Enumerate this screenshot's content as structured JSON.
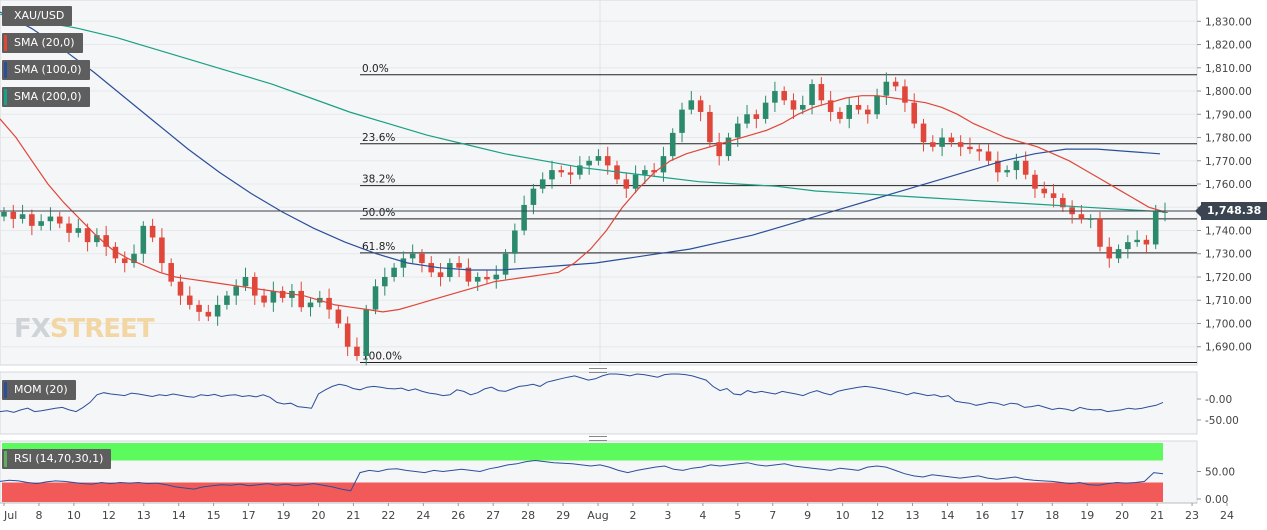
{
  "symbol": "XAU/USD",
  "legend": {
    "main": [
      {
        "label": "XAU/USD",
        "color": "#5e5e5e"
      },
      {
        "label": "SMA (20,0)",
        "color": "#e0463a"
      },
      {
        "label": "SMA (100,0)",
        "color": "#2a4f9a"
      },
      {
        "label": "SMA (200,0)",
        "color": "#1aa085"
      }
    ],
    "mom": {
      "label": "MOM (20)",
      "color": "#2a4f9a"
    },
    "rsi": {
      "label": "RSI (14,70,30,1)",
      "color": "#5eb05e"
    }
  },
  "watermark": {
    "part1": "FX",
    "part2": "STREET"
  },
  "current_price": "1,748.38",
  "colors": {
    "up": "#2c8a6c",
    "down": "#e0463a",
    "sma20": "#e0463a",
    "sma100": "#2a4f9a",
    "sma200": "#1aa085",
    "mom": "#2a4f9a",
    "rsi": "#2a4f9a",
    "overbought": "#5dfa5d",
    "oversold": "#f25a5a"
  },
  "chart_data": {
    "type": "candlestick",
    "y_axis_labels": [
      "1,830.00",
      "1,820.00",
      "1,810.00",
      "1,800.00",
      "1,790.00",
      "1,780.00",
      "1,770.00",
      "1,760.00",
      "1,750.00",
      "1,740.00",
      "1,730.00",
      "1,720.00",
      "1,710.00",
      "1,700.00",
      "1,690.00"
    ],
    "ylim": [
      1683,
      1834
    ],
    "x_axis_labels": [
      "Jul",
      "8",
      "10",
      "12",
      "13",
      "14",
      "15",
      "17",
      "19",
      "20",
      "21",
      "22",
      "24",
      "26",
      "27",
      "28",
      "29",
      "Aug",
      "2",
      "3",
      "4",
      "5",
      "7",
      "9",
      "10",
      "12",
      "13",
      "14",
      "16",
      "17",
      "18",
      "19",
      "20",
      "21",
      "23",
      "24"
    ],
    "fibonacci": [
      {
        "label": "0.0%",
        "price": 1807
      },
      {
        "label": "23.6%",
        "price": 1777.3
      },
      {
        "label": "38.2%",
        "price": 1759.3
      },
      {
        "label": "50.0%",
        "price": 1745
      },
      {
        "label": "61.8%",
        "price": 1730.4
      },
      {
        "label": "100.0%",
        "price": 1683.2
      }
    ],
    "close_series": [
      1748,
      1745,
      1747,
      1742,
      1744,
      1746,
      1743,
      1739,
      1741,
      1735,
      1738,
      1733,
      1728,
      1726,
      1730,
      1742,
      1737,
      1726,
      1718,
      1712,
      1708,
      1705,
      1703,
      1708,
      1712,
      1716,
      1720,
      1712,
      1709,
      1714,
      1711,
      1714,
      1707,
      1709,
      1711,
      1706,
      1700,
      1690,
      1686,
      1706,
      1716,
      1720,
      1724,
      1728,
      1730,
      1726,
      1722,
      1720,
      1726,
      1724,
      1718,
      1720,
      1719,
      1721,
      1730,
      1740,
      1751,
      1758,
      1762,
      1766,
      1765,
      1764,
      1768,
      1770,
      1772,
      1768,
      1762,
      1758,
      1764,
      1766,
      1765,
      1772,
      1782,
      1792,
      1796,
      1791,
      1778,
      1772,
      1780,
      1786,
      1790,
      1788,
      1795,
      1800,
      1796,
      1792,
      1794,
      1803,
      1796,
      1791,
      1788,
      1794,
      1792,
      1790,
      1798,
      1804,
      1802,
      1795,
      1786,
      1778,
      1776,
      1780,
      1778,
      1776,
      1775,
      1774,
      1770,
      1765,
      1766,
      1770,
      1764,
      1758,
      1756,
      1754,
      1750,
      1747,
      1745,
      1745,
      1733,
      1728,
      1732,
      1735,
      1736,
      1734,
      1748,
      1748
    ],
    "sma20": [
      1788,
      1780,
      1770,
      1760,
      1752,
      1745,
      1738,
      1732,
      1728,
      1725,
      1722,
      1720,
      1719,
      1718,
      1717,
      1716,
      1715,
      1714,
      1713,
      1712,
      1710,
      1708,
      1707,
      1706,
      1705,
      1706,
      1708,
      1710,
      1712,
      1714,
      1716,
      1718,
      1719,
      1720,
      1721,
      1722,
      1726,
      1732,
      1740,
      1750,
      1758,
      1765,
      1770,
      1773,
      1775,
      1777,
      1779,
      1781,
      1783,
      1786,
      1790,
      1793,
      1795,
      1797,
      1798,
      1798,
      1797,
      1796,
      1795,
      1793,
      1790,
      1786,
      1783,
      1780,
      1778,
      1776,
      1773,
      1770,
      1766,
      1762,
      1758,
      1754,
      1750,
      1748
    ],
    "sma100": [
      1834,
      1827,
      1818,
      1808,
      1797,
      1786,
      1775,
      1765,
      1756,
      1748,
      1741,
      1735,
      1730,
      1726,
      1724,
      1723,
      1723,
      1724,
      1725,
      1726,
      1728,
      1730,
      1732,
      1735,
      1738,
      1742,
      1746,
      1750,
      1754,
      1758,
      1762,
      1766,
      1770,
      1773,
      1775,
      1775,
      1774,
      1773
    ],
    "sma200": [
      1833,
      1830,
      1827,
      1823,
      1818,
      1813,
      1808,
      1803,
      1797,
      1791,
      1786,
      1781,
      1777,
      1773,
      1770,
      1767,
      1765,
      1763,
      1761,
      1760,
      1759,
      1757,
      1756,
      1755,
      1754,
      1753,
      1752,
      1751,
      1750,
      1749,
      1748
    ],
    "mom_labels": [
      "-0.00",
      "-50.00"
    ],
    "rsi_labels": [
      "50.00",
      "0.00"
    ],
    "mom_series": [
      -30,
      -28,
      -32,
      -26,
      -22,
      -30,
      -28,
      -25,
      -22,
      -20,
      -26,
      -30,
      -20,
      -8,
      10,
      15,
      12,
      10,
      8,
      14,
      12,
      9,
      6,
      10,
      8,
      12,
      9,
      6,
      4,
      10,
      8,
      11,
      6,
      9,
      10,
      6,
      8,
      5,
      10,
      4,
      -8,
      -12,
      -10,
      -18,
      -20,
      -22,
      12,
      22,
      30,
      35,
      32,
      25,
      22,
      28,
      30,
      28,
      25,
      24,
      26,
      20,
      24,
      18,
      14,
      12,
      8,
      10,
      22,
      18,
      10,
      15,
      24,
      28,
      20,
      18,
      24,
      30,
      32,
      35,
      30,
      40,
      44,
      48,
      52,
      55,
      50,
      45,
      48,
      55,
      60,
      62,
      58,
      55,
      60,
      58,
      55,
      52,
      58,
      62,
      60,
      58,
      55,
      50,
      45,
      30,
      20,
      25,
      12,
      10,
      20,
      15,
      18,
      15,
      12,
      18,
      15,
      12,
      8,
      15,
      20,
      14,
      10,
      18,
      22,
      25,
      28,
      30,
      28,
      25,
      22,
      18,
      15,
      10,
      15,
      12,
      8,
      10,
      5,
      8,
      -5,
      -8,
      -10,
      -15,
      -12,
      -8,
      -10,
      -15,
      -10,
      -12,
      -20,
      -18,
      -15,
      -20,
      -25,
      -22,
      -24,
      -28,
      -20,
      -24,
      -26,
      -25,
      -30,
      -28,
      -26,
      -22,
      -24,
      -22,
      -18,
      -15,
      -8
    ],
    "rsi_series": [
      32,
      34,
      33,
      30,
      28,
      31,
      33,
      32,
      30,
      28,
      27,
      30,
      28,
      30,
      29,
      30,
      28,
      29,
      26,
      22,
      20,
      18,
      22,
      24,
      26,
      25,
      27,
      24,
      26,
      28,
      25,
      27,
      24,
      26,
      28,
      25,
      22,
      18,
      15,
      48,
      52,
      50,
      54,
      55,
      52,
      50,
      48,
      52,
      50,
      52,
      54,
      52,
      50,
      55,
      58,
      62,
      64,
      68,
      70,
      68,
      66,
      65,
      64,
      62,
      60,
      62,
      58,
      52,
      48,
      52,
      55,
      58,
      60,
      54,
      52,
      56,
      58,
      62,
      60,
      62,
      64,
      66,
      62,
      60,
      62,
      64,
      60,
      58,
      56,
      54,
      52,
      56,
      54,
      52,
      58,
      60,
      58,
      52,
      46,
      42,
      40,
      44,
      42,
      40,
      38,
      40,
      42,
      38,
      36,
      38,
      40,
      36,
      34,
      33,
      32,
      30,
      28,
      30,
      26,
      25,
      28,
      30,
      29,
      30,
      32,
      48,
      46
    ]
  }
}
